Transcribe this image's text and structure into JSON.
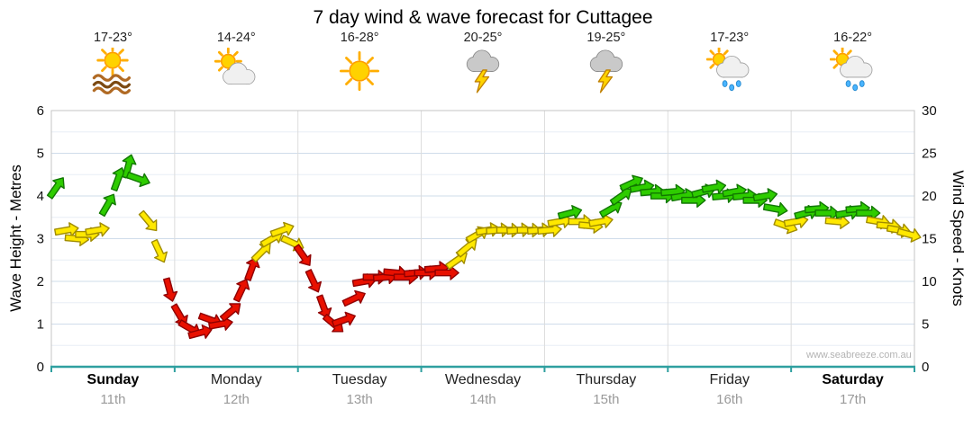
{
  "title": "7 day wind & wave forecast for Cuttagee",
  "watermark": "www.seabreeze.com.au",
  "colors": {
    "green": "#2ecc00",
    "green_edge": "#117700",
    "yellow": "#ffe800",
    "yellow_edge": "#a08c00",
    "red": "#e81000",
    "red_edge": "#8f0000",
    "axis_teal": "#2fa0a0",
    "grid_major": "#cfdcea",
    "grid_minor": "#e8eef5",
    "day_line": "#dcdcdc",
    "frame": "#c4c4c4"
  },
  "days": [
    {
      "name": "Sunday",
      "date": "11th",
      "temp": "17-23°",
      "icon": "sun-waves-icon",
      "weekend": true
    },
    {
      "name": "Monday",
      "date": "12th",
      "temp": "14-24°",
      "icon": "sun-cloud-icon",
      "weekend": false
    },
    {
      "name": "Tuesday",
      "date": "13th",
      "temp": "16-28°",
      "icon": "sun-icon",
      "weekend": false
    },
    {
      "name": "Wednesday",
      "date": "14th",
      "temp": "20-25°",
      "icon": "storm-icon",
      "weekend": false
    },
    {
      "name": "Thursday",
      "date": "15th",
      "temp": "19-25°",
      "icon": "storm-icon",
      "weekend": false
    },
    {
      "name": "Friday",
      "date": "16th",
      "temp": "17-23°",
      "icon": "sun-rain-icon",
      "weekend": false
    },
    {
      "name": "Saturday",
      "date": "17th",
      "temp": "16-22°",
      "icon": "sun-rain-icon",
      "weekend": true
    }
  ],
  "chart_data": {
    "type": "scatter",
    "marker": "wind-direction-arrow",
    "title": "7 day wind & wave forecast for Cuttagee",
    "x_categories": [
      "Sunday 11th",
      "Monday 12th",
      "Tuesday 13th",
      "Wednesday 14th",
      "Thursday 15th",
      "Friday 16th",
      "Saturday 17th"
    ],
    "points_per_day": 12,
    "direction_deg_convention": "0 = pointing right, positive = rotated up (counterclockwise)",
    "y_left": {
      "label": "Wave Height - Metres",
      "range": [
        0,
        6
      ],
      "ticks": [
        0,
        1,
        2,
        3,
        4,
        5,
        6
      ]
    },
    "y_right": {
      "label": "Wind Speed - Knots",
      "range": [
        0,
        30
      ],
      "ticks": [
        0,
        5,
        10,
        15,
        20,
        25,
        30
      ]
    },
    "series": [
      {
        "name": "Wind speed (knots)",
        "knots": [
          21,
          16,
          15,
          15.5,
          16,
          19,
          22,
          23.5,
          22,
          17,
          13.5,
          9,
          6,
          4.5,
          4,
          5.5,
          5,
          6.5,
          9,
          11.5,
          13.5,
          15,
          16,
          14.5,
          13,
          10,
          7,
          5,
          5.5,
          8,
          10,
          10.5,
          10.5,
          11,
          10.5,
          11,
          11,
          11.5,
          11,
          12.5,
          14,
          15.5,
          16,
          16,
          16,
          16,
          16,
          16,
          16,
          17,
          18,
          17,
          16.5,
          17,
          18.5,
          20,
          21.5,
          21,
          20.5,
          20,
          20.5,
          20,
          19.5,
          20.5,
          21,
          20,
          20.5,
          20,
          19.5,
          20,
          18.5,
          16.5,
          17,
          18,
          18.5,
          18,
          17,
          18,
          18.5,
          18,
          17,
          16.5,
          16,
          15.5
        ],
        "direction_deg": [
          55,
          10,
          -5,
          0,
          10,
          60,
          70,
          75,
          -20,
          -50,
          -65,
          -75,
          -60,
          -30,
          15,
          -20,
          10,
          40,
          65,
          70,
          45,
          30,
          20,
          -25,
          -55,
          -65,
          -70,
          -40,
          20,
          25,
          10,
          0,
          5,
          -5,
          0,
          5,
          0,
          5,
          0,
          35,
          40,
          30,
          10,
          5,
          0,
          5,
          0,
          5,
          5,
          10,
          15,
          0,
          -5,
          10,
          30,
          35,
          25,
          10,
          5,
          0,
          5,
          10,
          0,
          15,
          10,
          5,
          10,
          5,
          0,
          10,
          -10,
          -20,
          10,
          15,
          5,
          0,
          -5,
          10,
          5,
          0,
          -10,
          -5,
          -10,
          -15
        ],
        "strength_band": [
          "g",
          "y",
          "y",
          "y",
          "y",
          "g",
          "g",
          "g",
          "g",
          "y",
          "y",
          "r",
          "r",
          "r",
          "r",
          "r",
          "r",
          "r",
          "r",
          "r",
          "y",
          "y",
          "y",
          "y",
          "r",
          "r",
          "r",
          "r",
          "r",
          "r",
          "r",
          "r",
          "r",
          "r",
          "r",
          "r",
          "r",
          "r",
          "r",
          "y",
          "y",
          "y",
          "y",
          "y",
          "y",
          "y",
          "y",
          "y",
          "y",
          "y",
          "g",
          "y",
          "y",
          "y",
          "g",
          "g",
          "g",
          "g",
          "g",
          "g",
          "g",
          "g",
          "g",
          "g",
          "g",
          "g",
          "g",
          "g",
          "g",
          "g",
          "g",
          "y",
          "y",
          "g",
          "g",
          "g",
          "y",
          "g",
          "g",
          "g",
          "y",
          "y",
          "y",
          "y"
        ]
      }
    ]
  }
}
